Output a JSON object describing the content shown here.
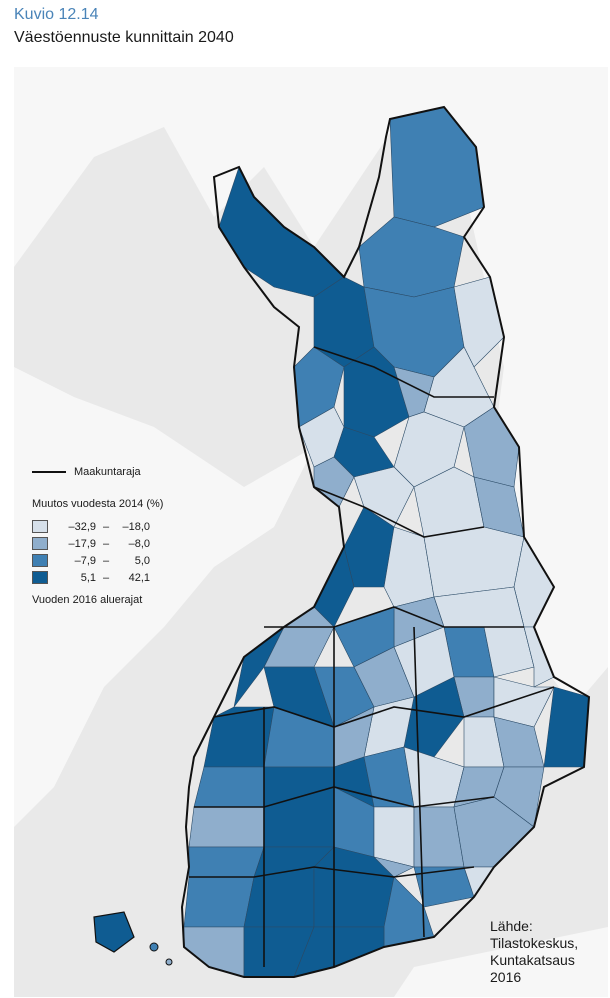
{
  "header": {
    "figure_label": "Kuvio 12.14",
    "title": "Väestöennuste kunnittain 2040"
  },
  "legend": {
    "boundary_label": "Maakuntaraja",
    "heading": "Muutos vuodesta 2014 (%)",
    "classes": [
      {
        "low": "–32,9",
        "high": "–18,0",
        "color": "#d6e0ea"
      },
      {
        "low": "–17,9",
        "high": "–8,0",
        "color": "#8faecc"
      },
      {
        "low": "–7,9",
        "high": "5,0",
        "color": "#3f80b3"
      },
      {
        "low": "5,1",
        "high": "42,1",
        "color": "#0f5c92"
      }
    ],
    "note": "Vuoden 2016 aluerajat"
  },
  "source": {
    "line1": "Lähde:",
    "line2": "Tilastokeskus,",
    "line3": "Kuntakatsaus",
    "line4": "2016"
  },
  "map": {
    "background_color": "#e9e9e9",
    "land_color": "#f7f7f7",
    "boundary_color": "#111111"
  }
}
